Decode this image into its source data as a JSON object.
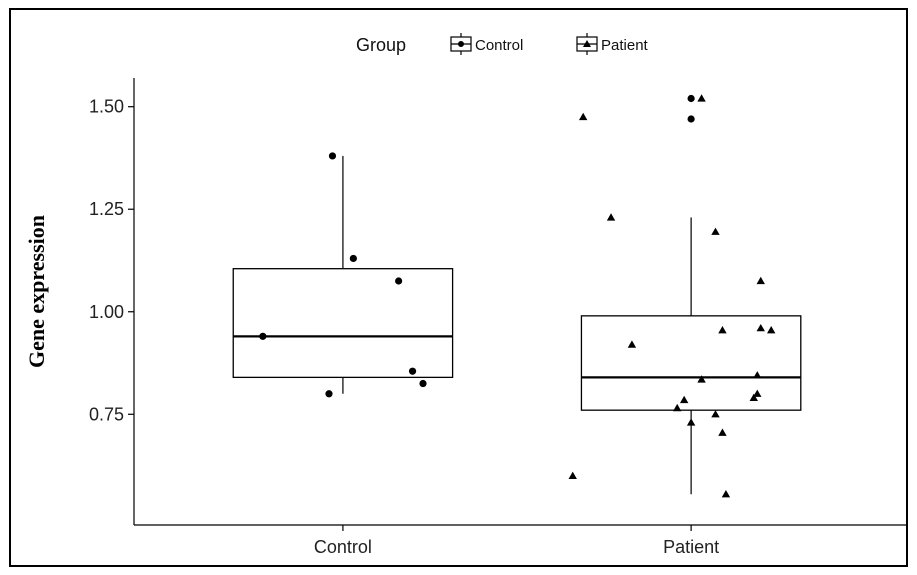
{
  "chart_data": {
    "type": "boxplot",
    "title": "",
    "xlabel": "",
    "ylabel": "Gene expression",
    "categories": [
      "Control",
      "Patient"
    ],
    "ylim": [
      0.48,
      1.57
    ],
    "yticks": [
      0.75,
      1.0,
      1.25,
      1.5
    ],
    "ytick_labels": [
      "0.75",
      "1.00",
      "1.25",
      "1.50"
    ],
    "legend": {
      "title": "Group",
      "position": "top",
      "items": [
        {
          "label": "Control",
          "marker": "circle"
        },
        {
          "label": "Patient",
          "marker": "triangle"
        }
      ]
    },
    "boxes": [
      {
        "group": "Control",
        "q1": 0.84,
        "median": 0.94,
        "q3": 1.105,
        "whisker_low": 0.8,
        "whisker_high": 1.38
      },
      {
        "group": "Patient",
        "q1": 0.76,
        "median": 0.84,
        "q3": 0.99,
        "whisker_low": 0.555,
        "whisker_high": 1.23
      }
    ],
    "points": [
      {
        "group": "Control",
        "marker": "circle",
        "x": 0.77,
        "y": 0.94
      },
      {
        "group": "Control",
        "marker": "circle",
        "x": 0.96,
        "y": 0.8
      },
      {
        "group": "Control",
        "marker": "circle",
        "x": 0.97,
        "y": 1.38
      },
      {
        "group": "Control",
        "marker": "circle",
        "x": 1.03,
        "y": 1.13
      },
      {
        "group": "Control",
        "marker": "circle",
        "x": 1.16,
        "y": 1.075
      },
      {
        "group": "Control",
        "marker": "circle",
        "x": 1.2,
        "y": 0.855
      },
      {
        "group": "Control",
        "marker": "circle",
        "x": 1.23,
        "y": 0.825
      },
      {
        "group": "Patient",
        "marker": "circle",
        "x": 2.0,
        "y": 1.52
      },
      {
        "group": "Patient",
        "marker": "circle",
        "x": 2.0,
        "y": 1.47
      },
      {
        "group": "Patient",
        "marker": "triangle",
        "x": 2.03,
        "y": 1.52
      },
      {
        "group": "Patient",
        "marker": "triangle",
        "x": 1.69,
        "y": 1.475
      },
      {
        "group": "Patient",
        "marker": "triangle",
        "x": 1.77,
        "y": 1.23
      },
      {
        "group": "Patient",
        "marker": "triangle",
        "x": 2.07,
        "y": 1.195
      },
      {
        "group": "Patient",
        "marker": "triangle",
        "x": 2.2,
        "y": 1.075
      },
      {
        "group": "Patient",
        "marker": "triangle",
        "x": 2.2,
        "y": 0.96
      },
      {
        "group": "Patient",
        "marker": "triangle",
        "x": 2.23,
        "y": 0.955
      },
      {
        "group": "Patient",
        "marker": "triangle",
        "x": 2.09,
        "y": 0.955
      },
      {
        "group": "Patient",
        "marker": "triangle",
        "x": 1.83,
        "y": 0.92
      },
      {
        "group": "Patient",
        "marker": "triangle",
        "x": 2.19,
        "y": 0.845
      },
      {
        "group": "Patient",
        "marker": "triangle",
        "x": 2.03,
        "y": 0.835
      },
      {
        "group": "Patient",
        "marker": "triangle",
        "x": 2.19,
        "y": 0.8
      },
      {
        "group": "Patient",
        "marker": "triangle",
        "x": 1.98,
        "y": 0.785
      },
      {
        "group": "Patient",
        "marker": "triangle",
        "x": 2.18,
        "y": 0.79
      },
      {
        "group": "Patient",
        "marker": "triangle",
        "x": 1.96,
        "y": 0.765
      },
      {
        "group": "Patient",
        "marker": "triangle",
        "x": 2.07,
        "y": 0.75
      },
      {
        "group": "Patient",
        "marker": "triangle",
        "x": 2.0,
        "y": 0.73
      },
      {
        "group": "Patient",
        "marker": "triangle",
        "x": 2.09,
        "y": 0.705
      },
      {
        "group": "Patient",
        "marker": "triangle",
        "x": 1.66,
        "y": 0.6
      },
      {
        "group": "Patient",
        "marker": "triangle",
        "x": 2.1,
        "y": 0.555
      }
    ],
    "grid": false,
    "colors": {
      "line": "#000000",
      "fill": "#ffffff",
      "text": "#222222"
    }
  }
}
